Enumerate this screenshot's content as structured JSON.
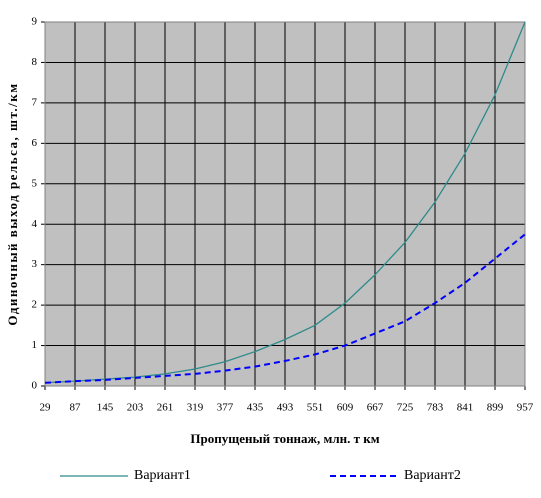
{
  "chart_data": {
    "type": "line",
    "x_label": "Пропущеный тоннаж, млн. т км",
    "y_label": "Одиночный выход рельса, шт./км",
    "x": [
      29,
      87,
      145,
      203,
      261,
      319,
      377,
      435,
      493,
      551,
      609,
      667,
      725,
      783,
      841,
      899,
      957
    ],
    "xlim": [
      29,
      957
    ],
    "xticks": [
      29,
      87,
      145,
      203,
      261,
      319,
      377,
      435,
      493,
      551,
      609,
      667,
      725,
      783,
      841,
      899,
      957
    ],
    "ylim": [
      0,
      9
    ],
    "yticks": [
      0,
      1,
      2,
      3,
      4,
      5,
      6,
      7,
      8,
      9
    ],
    "grid": true,
    "legend": "bottom",
    "series": [
      {
        "name": "Вариант1",
        "color": "#2e8b8b",
        "dashed": false,
        "values": [
          0.08,
          0.12,
          0.17,
          0.22,
          0.3,
          0.42,
          0.6,
          0.85,
          1.15,
          1.5,
          2.05,
          2.75,
          3.55,
          4.55,
          5.75,
          7.2,
          9.0
        ]
      },
      {
        "name": "Вариант2",
        "color": "#0000ff",
        "dashed": true,
        "values": [
          0.08,
          0.12,
          0.15,
          0.2,
          0.25,
          0.3,
          0.38,
          0.48,
          0.62,
          0.78,
          1.0,
          1.3,
          1.6,
          2.05,
          2.55,
          3.15,
          3.75
        ]
      }
    ]
  }
}
